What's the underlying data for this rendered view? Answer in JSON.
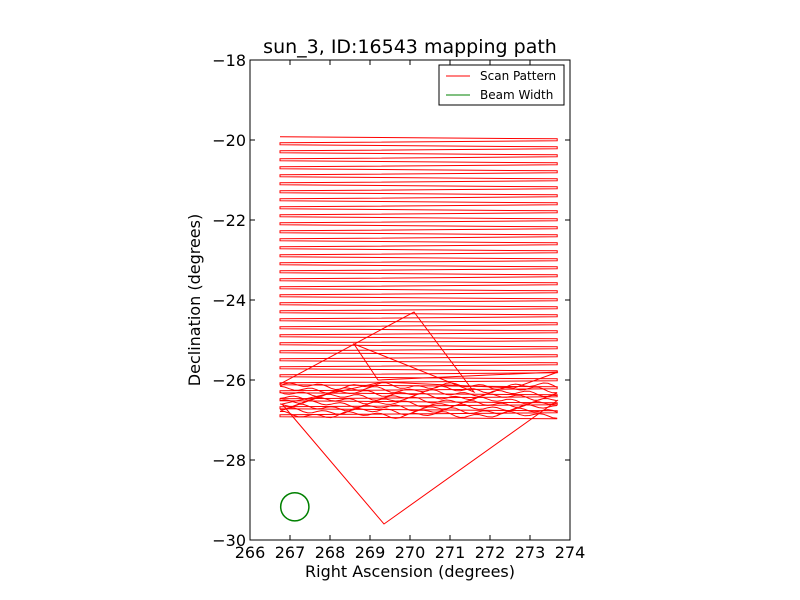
{
  "chart_data": {
    "type": "line",
    "title": "sun_3, ID:16543 mapping path",
    "xlabel": "Right Ascension (degrees)",
    "ylabel": "Declination (degrees)",
    "xlim": [
      266,
      274
    ],
    "ylim": [
      -30,
      -18
    ],
    "xticks": [
      266,
      267,
      268,
      269,
      270,
      271,
      272,
      273,
      274
    ],
    "yticks": [
      -30,
      -28,
      -26,
      -24,
      -22,
      -20,
      -18
    ],
    "xtick_labels": [
      "266",
      "267",
      "268",
      "269",
      "270",
      "271",
      "272",
      "273",
      "274"
    ],
    "ytick_labels": [
      "−30",
      "−28",
      "−26",
      "−24",
      "−22",
      "−20",
      "−18"
    ],
    "grid": false,
    "legend_position": "top-right",
    "series": [
      {
        "name": "Scan Pattern",
        "color": "#ff0000",
        "raster": {
          "ra_left": 266.75,
          "ra_right": 273.68,
          "dec_start": -19.92,
          "dec_end": -26.97,
          "spacing": 0.1
        },
        "path": [
          [
            266.75,
            -26.1
          ],
          [
            270.1,
            -24.3
          ],
          [
            271.6,
            -26.3
          ],
          [
            268.6,
            -25.1
          ],
          [
            269.2,
            -26.0
          ],
          [
            273.7,
            -25.8
          ],
          [
            272.6,
            -26.2
          ],
          [
            269.3,
            -26.05
          ],
          [
            266.8,
            -26.6
          ],
          [
            269.35,
            -29.6
          ],
          [
            273.7,
            -26.5
          ]
        ]
      },
      {
        "name": "Beam Width",
        "color": "#008000",
        "center": [
          267.12,
          -29.17
        ],
        "radius": 0.36
      }
    ]
  }
}
